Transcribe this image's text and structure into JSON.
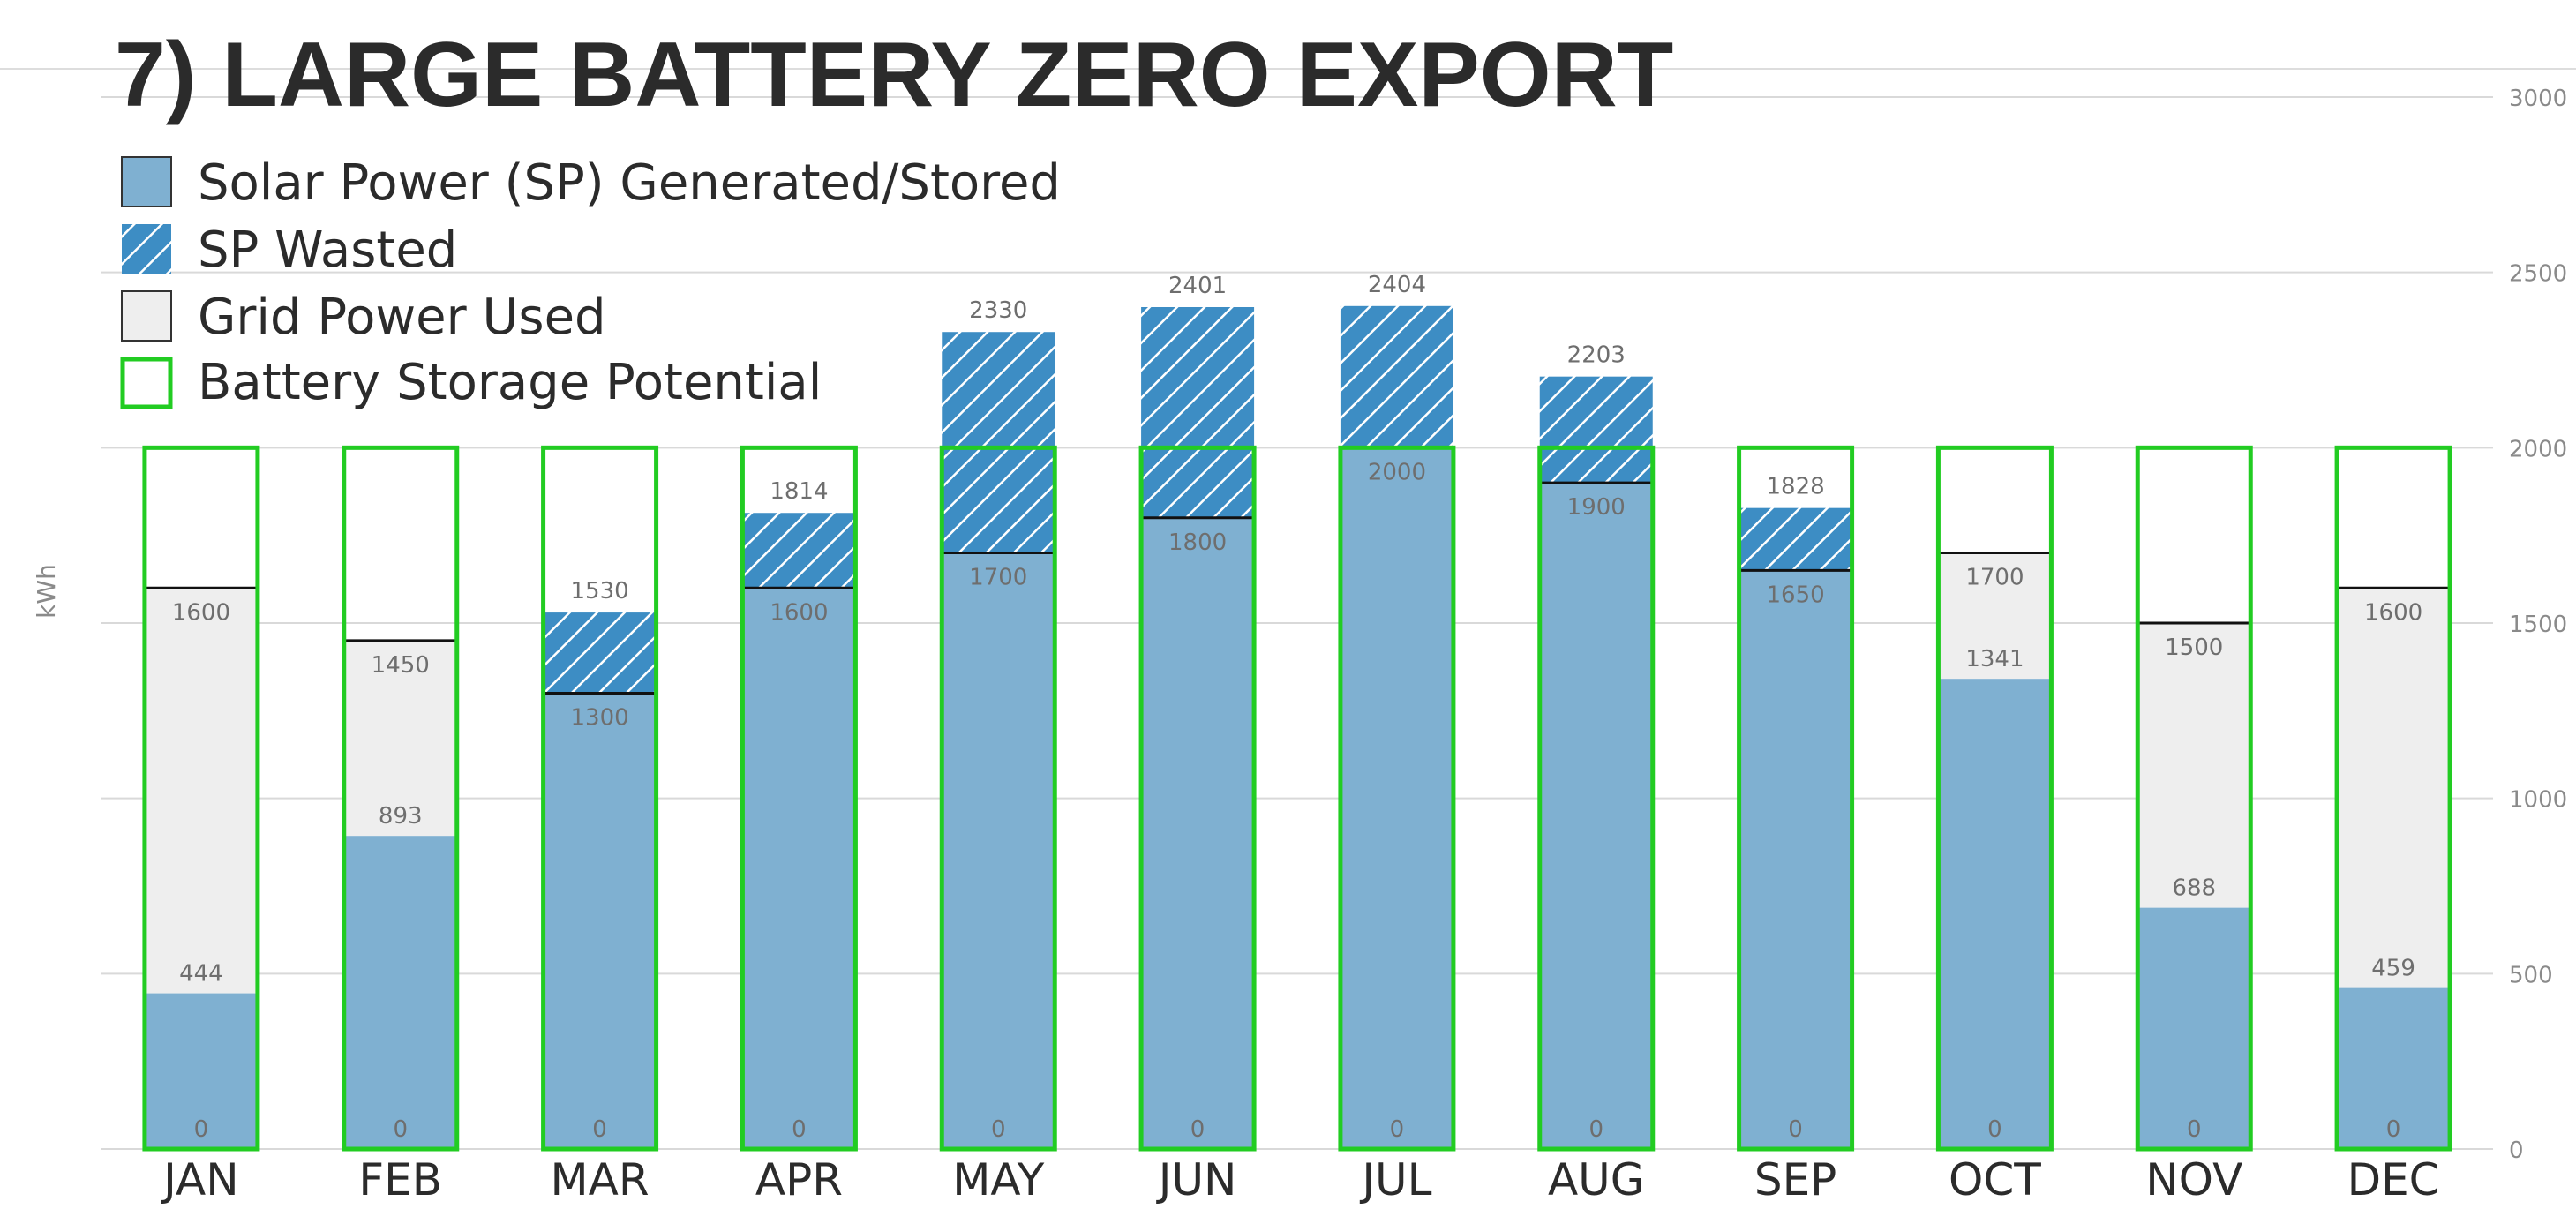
{
  "chart_data": {
    "type": "bar",
    "title": "7) LARGE BATTERY ZERO EXPORT",
    "ylabel": "kWh",
    "ylim": [
      0,
      3000
    ],
    "yticks": [
      0,
      500,
      1000,
      1500,
      2000,
      2500,
      3000
    ],
    "y_axis_side": "right",
    "grid": true,
    "legend_placement": "top-left",
    "categories": [
      "JAN",
      "FEB",
      "MAR",
      "APR",
      "MAY",
      "JUN",
      "JUL",
      "AUG",
      "SEP",
      "OCT",
      "NOV",
      "DEC"
    ],
    "battery_capacity": 2000,
    "series": [
      {
        "name": "Solar Power (SP) Generated/Stored",
        "values": [
          444,
          893,
          1300,
          1600,
          1700,
          1800,
          2000,
          1900,
          1650,
          1341,
          688,
          459
        ],
        "color": "#7FB0D1"
      },
      {
        "name": "SP Wasted",
        "top_values": [
          null,
          null,
          1530,
          1814,
          2330,
          2401,
          2404,
          2203,
          1828,
          null,
          null,
          null
        ],
        "color": "#3D8DC4"
      },
      {
        "name": "Grid Power Used",
        "top_values": [
          1600,
          1450,
          null,
          null,
          null,
          null,
          null,
          null,
          null,
          1700,
          1500,
          1600
        ],
        "color": "#EEEEEE"
      },
      {
        "name": "Battery Storage Potential",
        "values": [
          2000,
          2000,
          2000,
          2000,
          2000,
          2000,
          2000,
          2000,
          2000,
          2000,
          2000,
          2000
        ],
        "color": "#22CC22"
      }
    ],
    "consumption": [
      1600,
      1450,
      1300,
      1600,
      1700,
      1800,
      2000,
      1900,
      1650,
      1700,
      1500,
      1600
    ],
    "data_labels": {
      "zero": [
        0,
        0,
        0,
        0,
        0,
        0,
        0,
        0,
        0,
        0,
        0,
        0
      ],
      "solar": [
        444,
        893,
        null,
        null,
        null,
        null,
        null,
        null,
        null,
        1341,
        688,
        459
      ],
      "line": [
        1600,
        1450,
        1300,
        1600,
        1700,
        1800,
        2000,
        1900,
        1650,
        1700,
        1500,
        1600
      ],
      "top": [
        null,
        null,
        1530,
        1814,
        2330,
        2401,
        2404,
        2203,
        1828,
        null,
        null,
        null
      ]
    }
  }
}
